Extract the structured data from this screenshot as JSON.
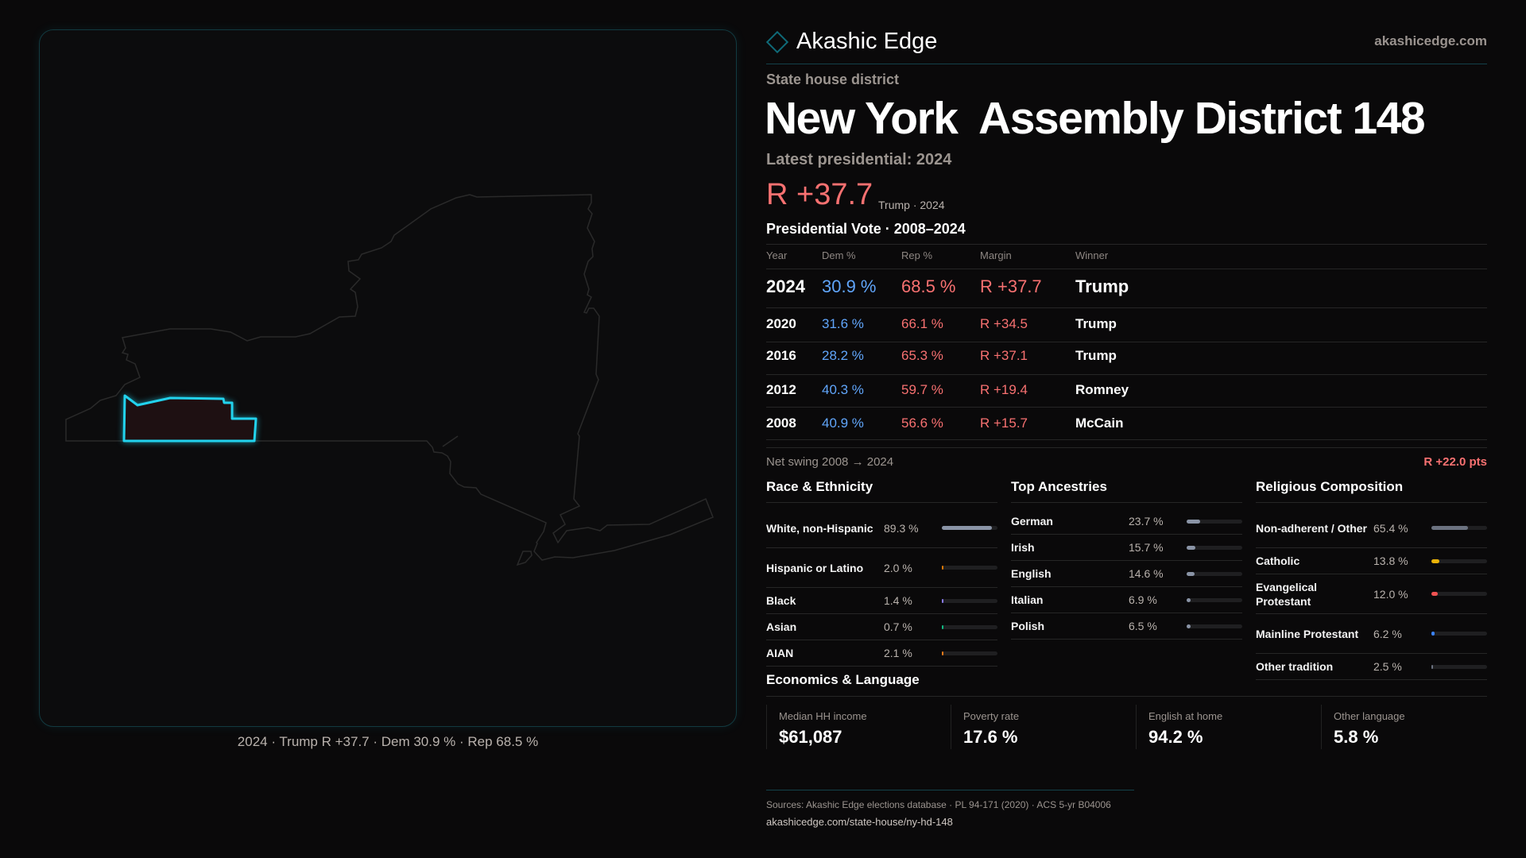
{
  "brand": {
    "name": "Akashic Edge",
    "site": "akashicedge.com",
    "accent": "#22d3ee"
  },
  "header": {
    "kicker": "State house district",
    "title": "New York  Assembly District 148",
    "latest": "Latest presidential: 2024",
    "margin": "R +37.7",
    "margin_sub": "Trump · 2024"
  },
  "map": {
    "caption": "2024 · Trump R +37.7 · Dem 30.9 % · Rep 68.5 %",
    "district_color": "#22d3ee"
  },
  "vote": {
    "title": "Presidential Vote · 2008–2024",
    "headers": [
      "Year",
      "Dem %",
      "Rep %",
      "Margin",
      "Winner"
    ],
    "rows": [
      {
        "year": "2024",
        "dem": "30.9 %",
        "rep": "68.5 %",
        "margin": "R +37.7",
        "winner": "Trump"
      },
      {
        "year": "2020",
        "dem": "31.6 %",
        "rep": "66.1 %",
        "margin": "R +34.5",
        "winner": "Trump"
      },
      {
        "year": "2016",
        "dem": "28.2 %",
        "rep": "65.3 %",
        "margin": "R +37.1",
        "winner": "Trump"
      },
      {
        "year": "2012",
        "dem": "40.3 %",
        "rep": "59.7 %",
        "margin": "R +19.4",
        "winner": "Romney"
      },
      {
        "year": "2008",
        "dem": "40.9 %",
        "rep": "56.6 %",
        "margin": "R +15.7",
        "winner": "McCain"
      }
    ],
    "swing_label": "Net swing 2008 → 2024",
    "swing_value": "R +22.0 pts"
  },
  "race": {
    "title": "Race & Ethnicity",
    "items": [
      {
        "label": "White, non-Hispanic",
        "value": "89.3 %",
        "pct": 89.3,
        "color": "#8a94a6"
      },
      {
        "label": "Hispanic or Latino",
        "value": "2.0 %",
        "pct": 2.0,
        "color": "#d97706"
      },
      {
        "label": "Black",
        "value": "1.4 %",
        "pct": 1.4,
        "color": "#8b7cf6"
      },
      {
        "label": "Asian",
        "value": "0.7 %",
        "pct": 0.7,
        "color": "#10b981"
      },
      {
        "label": "AIAN",
        "value": "2.1 %",
        "pct": 2.1,
        "color": "#ea7a1a"
      }
    ]
  },
  "ancestry": {
    "title": "Top Ancestries",
    "items": [
      {
        "label": "German",
        "value": "23.7 %",
        "pct": 23.7,
        "color": "#8a94a6"
      },
      {
        "label": "Irish",
        "value": "15.7 %",
        "pct": 15.7,
        "color": "#8a94a6"
      },
      {
        "label": "English",
        "value": "14.6 %",
        "pct": 14.6,
        "color": "#8a94a6"
      },
      {
        "label": "Italian",
        "value": "6.9 %",
        "pct": 6.9,
        "color": "#8a94a6"
      },
      {
        "label": "Polish",
        "value": "6.5 %",
        "pct": 6.5,
        "color": "#8a94a6"
      }
    ]
  },
  "religion": {
    "title": "Religious Composition",
    "items": [
      {
        "label": "Non-adherent / Other",
        "value": "65.4 %",
        "pct": 65.4,
        "color": "#6b7280"
      },
      {
        "label": "Catholic",
        "value": "13.8 %",
        "pct": 13.8,
        "color": "#eab308"
      },
      {
        "label": "Evangelical Protestant",
        "value": "12.0 %",
        "pct": 12.0,
        "color": "#f05252"
      },
      {
        "label": "Mainline Protestant",
        "value": "6.2 %",
        "pct": 6.2,
        "color": "#3b82f6"
      },
      {
        "label": "Other tradition",
        "value": "2.5 %",
        "pct": 2.5,
        "color": "#6b7280"
      }
    ]
  },
  "economics": {
    "title": "Economics & Language",
    "cards": [
      {
        "label": "Median HH income",
        "value": "$61,087"
      },
      {
        "label": "Poverty rate",
        "value": "17.6 %"
      },
      {
        "label": "English at home",
        "value": "94.2 %"
      },
      {
        "label": "Other language",
        "value": "5.8 %"
      }
    ]
  },
  "footer": {
    "sources": "Sources: Akashic Edge elections database · PL 94-171 (2020) · ACS 5-yr B04006",
    "url": "akashicedge.com/state-house/ny-hd-148"
  }
}
